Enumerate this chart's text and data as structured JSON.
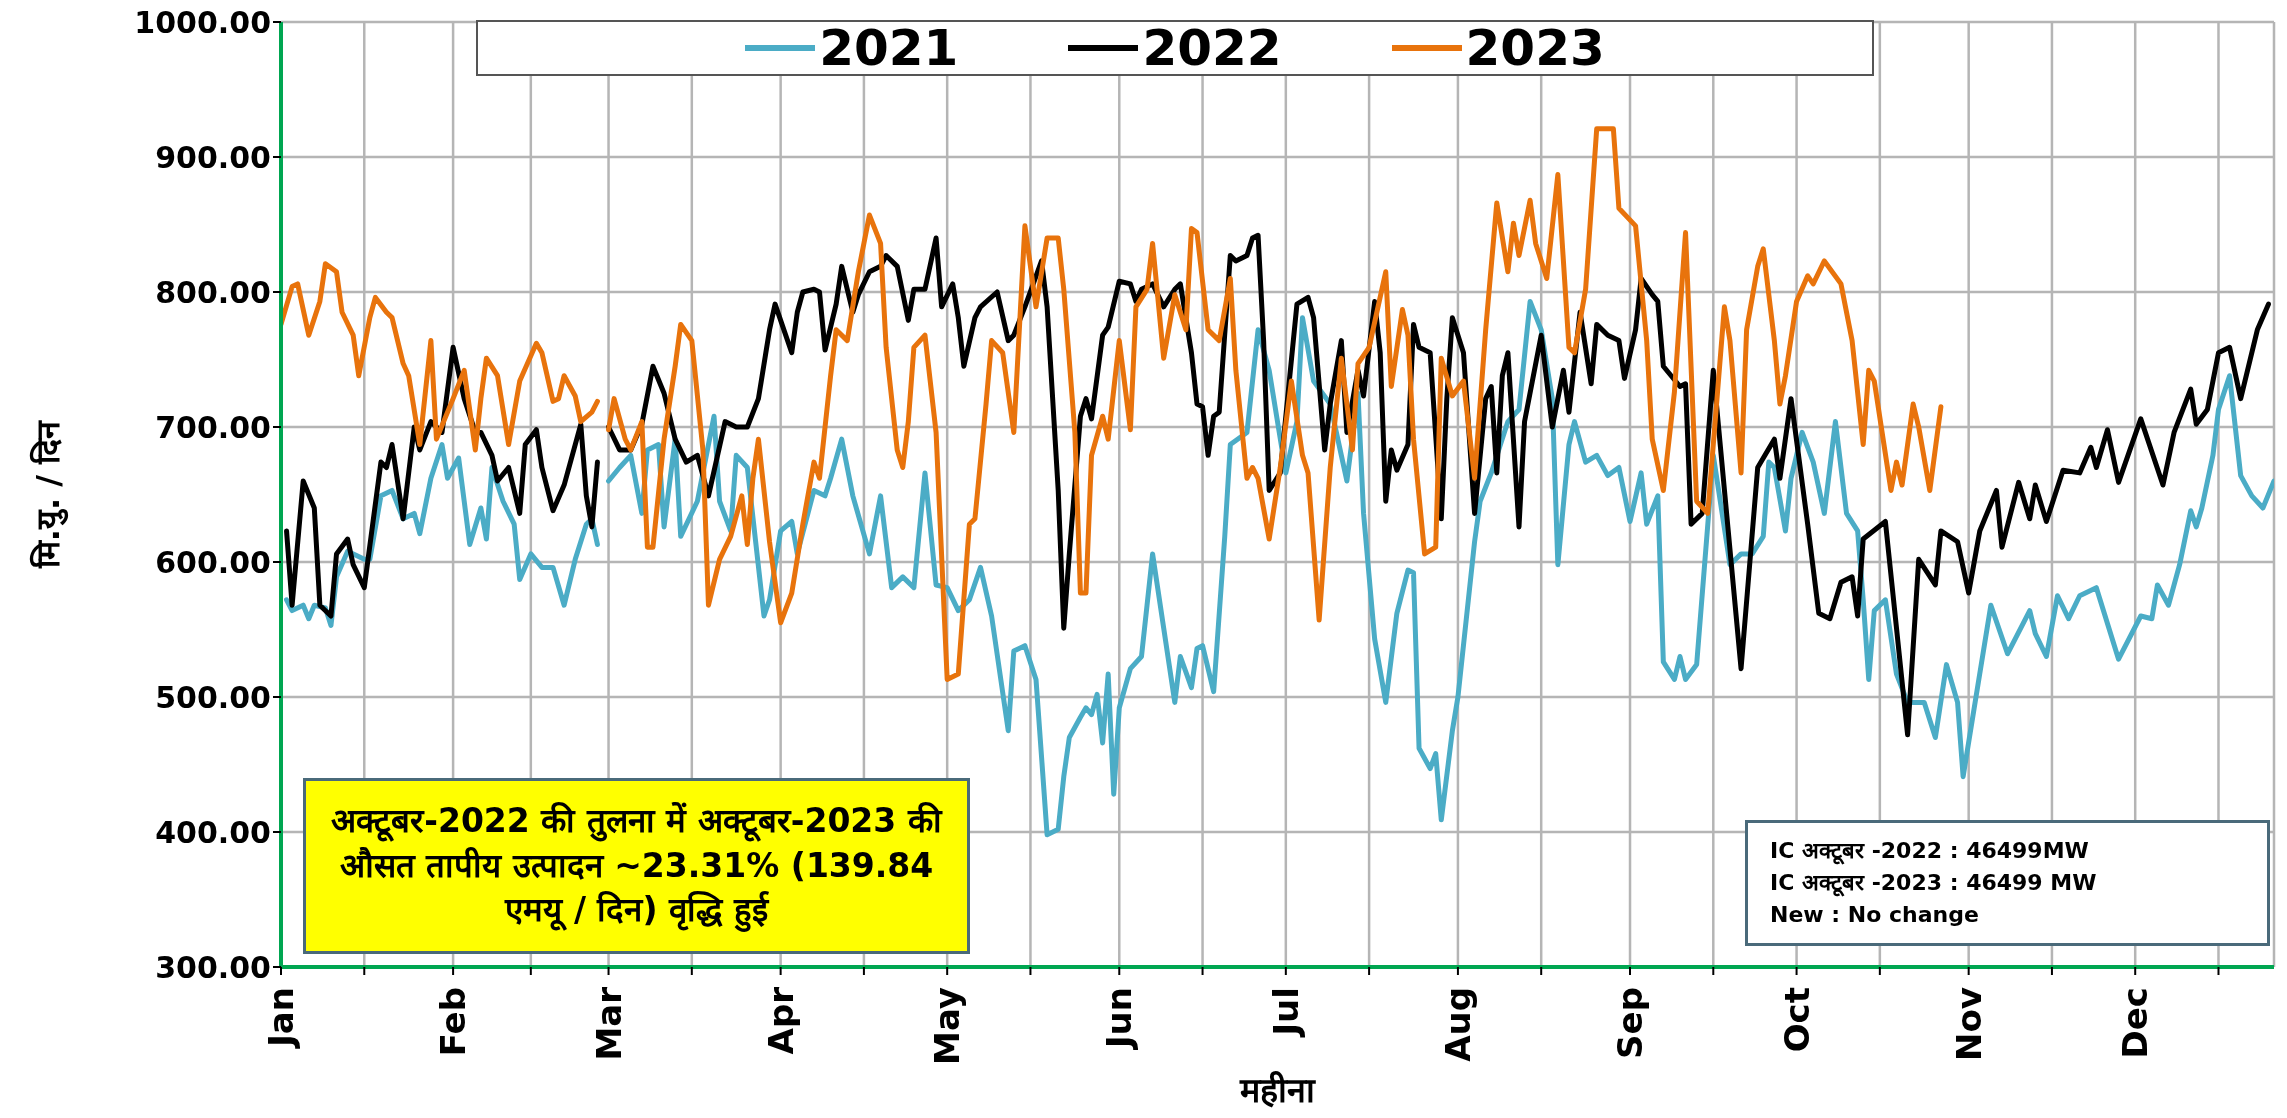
{
  "chart_data": {
    "type": "line",
    "xlabel": "महीना",
    "ylabel": "मि.यु. / दिन",
    "xlim": [
      "--01-01",
      "--12-26"
    ],
    "xticks": [
      {
        "value": "--01-01",
        "label": "Jan"
      },
      {
        "value": "--01-16",
        "label": null
      },
      {
        "value": "--02-01",
        "label": "Feb"
      },
      {
        "value": "--02-15",
        "label": null
      },
      {
        "value": "--03-01",
        "label": "Mar"
      },
      {
        "value": "--03-16",
        "label": null
      },
      {
        "value": "--04-01",
        "label": "Apr"
      },
      {
        "value": "--04-16",
        "label": null
      },
      {
        "value": "--05-01",
        "label": "May"
      },
      {
        "value": "--05-16",
        "label": null
      },
      {
        "value": "--06-01",
        "label": "Jun"
      },
      {
        "value": "--06-16",
        "label": null
      },
      {
        "value": "--07-01",
        "label": "Jul"
      },
      {
        "value": "--07-16",
        "label": null
      },
      {
        "value": "--08-01",
        "label": "Aug"
      },
      {
        "value": "--08-16",
        "label": null
      },
      {
        "value": "--09-01",
        "label": "Sep"
      },
      {
        "value": "--09-16",
        "label": null
      },
      {
        "value": "--10-01",
        "label": "Oct"
      },
      {
        "value": "--10-16",
        "label": null
      },
      {
        "value": "--11-01",
        "label": "Nov"
      },
      {
        "value": "--11-16",
        "label": null
      },
      {
        "value": "--12-01",
        "label": "Dec"
      },
      {
        "value": "--12-16",
        "label": null
      }
    ],
    "ylim": [
      300,
      1000
    ],
    "yticks": [
      {
        "value": 300,
        "label": "300.00"
      },
      {
        "value": 400,
        "label": "400.00"
      },
      {
        "value": 500,
        "label": "500.00"
      },
      {
        "value": 600,
        "label": "600.00"
      },
      {
        "value": 700,
        "label": "700.00"
      },
      {
        "value": 800,
        "label": "800.00"
      },
      {
        "value": 900,
        "label": "900.00"
      },
      {
        "value": 1000,
        "label": "1000.00"
      }
    ],
    "grid": true,
    "legend": "top",
    "marker": "none",
    "line_style": "solid",
    "annotations": [
      "अक्टूबर-2022 की तुलना में अक्टूबर-2023 की औसत तापीय उत्पादन ~23.31% (139.84 एमयू / दिन) वृद्धि हुई",
      "IC अक्टूबर -2022 : 46499MW\nIC अक्टूबर  -2023 : 46499 MW\nNew : No change"
    ],
    "series": [
      {
        "name": "2021",
        "color": "#4bacc6",
        "x": [
          "--01-02",
          "--01-03",
          "--01-05",
          "--01-06",
          "--01-07",
          "--01-09",
          "--01-10",
          "--01-11",
          "--01-13",
          "--01-16",
          "--01-17",
          "--01-19",
          "--01-21",
          "--01-23",
          "--01-25",
          "--01-26",
          "--01-28",
          "--01-30",
          "--01-31",
          "--02-02",
          "--02-03",
          "--02-04",
          "--02-06",
          "--02-07",
          "--02-08",
          "--02-10",
          "--02-12",
          "--02-13",
          "--02-15",
          "--02-17",
          "--02-19",
          "--02-21",
          "--02-23",
          "--02-25",
          "--02-26",
          "--02-27",
          "--02-28",
          "--03-01",
          "--03-03",
          "--03-05",
          "--03-07",
          "--03-08",
          "--03-10",
          "--03-11",
          "--03-13",
          "--03-14",
          "--03-17",
          "--03-20",
          "--03-21",
          "--03-23",
          "--03-24",
          "--03-26",
          "--03-29",
          "--03-30",
          "--04-01",
          "--04-03",
          "--04-04",
          "--04-07",
          "--04-09",
          "--04-10",
          "--04-12",
          "--04-14",
          "--04-17",
          "--04-19",
          "--04-21",
          "--04-23",
          "--04-25",
          "--04-27",
          "--04-29",
          "--05-01",
          "--05-03",
          "--05-05",
          "--05-07",
          "--05-09",
          "--05-12",
          "--05-13",
          "--05-15",
          "--05-17",
          "--05-19",
          "--05-21",
          "--05-22",
          "--05-23",
          "--05-25",
          "--05-26",
          "--05-27",
          "--05-28",
          "--05-29",
          "--05-30",
          "--05-31",
          "--06-01",
          "--06-03",
          "--06-05",
          "--06-06",
          "--06-07",
          "--06-09",
          "--06-11",
          "--06-12",
          "--06-14",
          "--06-15",
          "--06-16",
          "--06-18",
          "--06-20",
          "--06-21",
          "--06-24",
          "--06-26",
          "--06-28",
          "--07-01",
          "--07-03",
          "--07-04",
          "--07-06",
          "--07-09",
          "--07-11",
          "--07-12",
          "--07-14",
          "--07-15",
          "--07-17",
          "--07-19",
          "--07-21",
          "--07-23",
          "--07-24",
          "--07-25",
          "--07-27",
          "--07-28",
          "--07-29",
          "--07-31",
          "--08-01",
          "--08-04",
          "--08-05",
          "--08-07",
          "--08-10",
          "--08-12",
          "--08-14",
          "--08-16",
          "--08-18",
          "--08-19",
          "--08-21",
          "--08-22",
          "--08-24",
          "--08-26",
          "--08-28",
          "--08-30",
          "--09-01",
          "--09-03",
          "--09-04",
          "--09-06",
          "--09-07",
          "--09-09",
          "--09-10",
          "--09-11",
          "--09-13",
          "--09-16",
          "--09-19",
          "--09-21",
          "--09-23",
          "--09-25",
          "--09-26",
          "--09-27",
          "--09-29",
          "--09-30",
          "--10-02",
          "--10-04",
          "--10-06",
          "--10-08",
          "--10-10",
          "--10-12",
          "--10-13",
          "--10-14",
          "--10-15",
          "--10-17",
          "--10-19",
          "--10-21",
          "--10-24",
          "--10-26",
          "--10-28",
          "--10-30",
          "--10-31",
          "--11-02",
          "--11-05",
          "--11-08",
          "--11-12",
          "--11-13",
          "--11-15",
          "--11-17",
          "--11-19",
          "--11-21",
          "--11-24",
          "--11-28",
          "--12-02",
          "--12-04",
          "--12-05",
          "--12-07",
          "--12-09",
          "--12-11",
          "--12-12",
          "--12-13",
          "--12-15",
          "--12-16",
          "--12-18",
          "--12-20",
          "--12-22",
          "--12-24",
          "--12-26"
        ],
        "values": [
          572,
          564,
          568,
          558,
          568,
          566,
          553,
          589,
          608,
          602,
          602,
          649,
          653,
          632,
          636,
          621,
          662,
          687,
          662,
          677,
          645,
          613,
          640,
          617,
          670,
          645,
          628,
          587,
          606,
          596,
          596,
          568,
          602,
          628,
          632,
          613,
          null,
          660,
          670,
          679,
          636,
          683,
          687,
          626,
          691,
          619,
          645,
          708,
          645,
          623,
          679,
          670,
          560,
          572,
          623,
          630,
          606,
          653,
          649,
          662,
          691,
          649,
          606,
          649,
          581,
          589,
          581,
          666,
          583,
          581,
          564,
          572,
          596,
          560,
          475,
          534,
          538,
          513,
          398,
          402,
          441,
          470,
          485,
          492,
          487,
          502,
          466,
          517,
          428,
          492,
          521,
          530,
          568,
          606,
          551,
          496,
          530,
          507,
          536,
          538,
          504,
          619,
          687,
          696,
          772,
          742,
          666,
          704,
          781,
          734,
          717,
          679,
          660,
          725,
          636,
          543,
          496,
          562,
          594,
          592,
          462,
          447,
          458,
          409,
          475,
          500,
          615,
          645,
          666,
          704,
          713,
          793,
          772,
          721,
          598,
          687,
          704,
          674,
          679,
          664,
          670,
          630,
          666,
          628,
          649,
          526,
          513,
          530,
          513,
          524,
          679,
          598,
          606,
          606,
          619,
          674,
          670,
          623,
          662,
          696,
          674,
          636,
          704,
          636,
          623,
          572,
          513,
          564,
          572,
          517,
          496,
          496,
          470,
          524,
          496,
          441,
          492,
          568,
          532,
          564,
          547,
          530,
          575,
          558,
          575,
          581,
          528,
          560,
          558,
          583,
          568,
          598,
          638,
          626,
          640,
          679,
          713,
          738,
          664,
          649,
          640,
          660
        ]
      },
      {
        "name": "2022",
        "color": "#000000",
        "x": [
          "--01-02",
          "--01-03",
          "--01-05",
          "--01-07",
          "--01-08",
          "--01-10",
          "--01-11",
          "--01-13",
          "--01-14",
          "--01-16",
          "--01-19",
          "--01-20",
          "--01-21",
          "--01-23",
          "--01-25",
          "--01-26",
          "--01-28",
          "--01-30",
          "--02-01",
          "--02-03",
          "--02-05",
          "--02-06",
          "--02-08",
          "--02-09",
          "--02-11",
          "--02-13",
          "--02-14",
          "--02-16",
          "--02-17",
          "--02-19",
          "--02-21",
          "--02-24",
          "--02-25",
          "--02-26",
          "--02-27",
          "--02-28",
          "--03-01",
          "--03-03",
          "--03-05",
          "--03-07",
          "--03-09",
          "--03-11",
          "--03-13",
          "--03-15",
          "--03-17",
          "--03-19",
          "--03-22",
          "--03-24",
          "--03-26",
          "--03-28",
          "--03-30",
          "--03-31",
          "--04-03",
          "--04-04",
          "--04-05",
          "--04-07",
          "--04-08",
          "--04-09",
          "--04-11",
          "--04-12",
          "--04-14",
          "--04-15",
          "--04-17",
          "--04-19",
          "--04-20",
          "--04-22",
          "--04-24",
          "--04-25",
          "--04-27",
          "--04-29",
          "--04-30",
          "--05-02",
          "--05-03",
          "--05-04",
          "--05-06",
          "--05-07",
          "--05-10",
          "--05-12",
          "--05-13",
          "--05-15",
          "--05-18",
          "--05-19",
          "--05-21",
          "--05-22",
          "--05-23",
          "--05-25",
          "--05-26",
          "--05-27",
          "--05-29",
          "--05-30",
          "--06-01",
          "--06-03",
          "--06-04",
          "--06-05",
          "--06-07",
          "--06-09",
          "--06-11",
          "--06-12",
          "--06-14",
          "--06-15",
          "--06-16",
          "--06-17",
          "--06-18",
          "--06-19",
          "--06-21",
          "--06-22",
          "--06-24",
          "--06-25",
          "--06-26",
          "--06-27",
          "--06-28",
          "--06-30",
          "--07-01",
          "--07-03",
          "--07-05",
          "--07-06",
          "--07-08",
          "--07-09",
          "--07-11",
          "--07-12",
          "--07-14",
          "--07-15",
          "--07-17",
          "--07-18",
          "--07-19",
          "--07-20",
          "--07-21",
          "--07-23",
          "--07-24",
          "--07-25",
          "--07-27",
          "--07-29",
          "--07-30",
          "--07-31",
          "--08-02",
          "--08-04",
          "--08-06",
          "--08-07",
          "--08-08",
          "--08-09",
          "--08-10",
          "--08-12",
          "--08-13",
          "--08-16",
          "--08-18",
          "--08-20",
          "--08-21",
          "--08-23",
          "--08-25",
          "--08-26",
          "--08-28",
          "--08-30",
          "--08-31",
          "--09-02",
          "--09-03",
          "--09-05",
          "--09-06",
          "--09-07",
          "--09-10",
          "--09-11",
          "--09-12",
          "--09-14",
          "--09-16",
          "--09-21",
          "--09-24",
          "--09-27",
          "--09-28",
          "--09-30",
          "--10-03",
          "--10-05",
          "--10-07",
          "--10-09",
          "--10-11",
          "--10-12",
          "--10-13",
          "--10-17",
          "--10-21",
          "--10-23",
          "--10-26",
          "--10-27",
          "--10-30",
          "--11-01",
          "--11-03",
          "--11-06",
          "--11-07",
          "--11-10",
          "--11-12",
          "--11-13",
          "--11-15",
          "--11-18",
          "--11-21",
          "--11-23",
          "--11-24",
          "--11-26",
          "--11-28",
          "--12-02",
          "--12-06",
          "--12-08",
          "--12-11",
          "--12-12",
          "--12-14",
          "--12-16",
          "--12-18",
          "--12-20",
          "--12-23",
          "--12-25"
        ],
        "values": [
          623,
          568,
          660,
          640,
          568,
          560,
          606,
          617,
          598,
          581,
          674,
          670,
          687,
          632,
          700,
          683,
          704,
          696,
          759,
          721,
          696,
          696,
          679,
          660,
          670,
          636,
          687,
          698,
          670,
          638,
          657,
          702,
          649,
          626,
          674,
          null,
          700,
          683,
          683,
          702,
          745,
          725,
          691,
          674,
          679,
          649,
          704,
          700,
          700,
          721,
          772,
          791,
          755,
          785,
          800,
          802,
          800,
          757,
          791,
          819,
          785,
          798,
          815,
          819,
          827,
          819,
          779,
          802,
          802,
          840,
          789,
          806,
          781,
          745,
          781,
          789,
          800,
          764,
          768,
          789,
          823,
          789,
          653,
          551,
          606,
          708,
          721,
          706,
          768,
          774,
          808,
          806,
          793,
          802,
          806,
          789,
          802,
          806,
          755,
          717,
          715,
          679,
          708,
          711,
          827,
          823,
          827,
          840,
          842,
          764,
          653,
          666,
          708,
          791,
          796,
          781,
          683,
          717,
          764,
          696,
          742,
          723,
          793,
          755,
          645,
          683,
          668,
          687,
          776,
          759,
          755,
          632,
          721,
          781,
          755,
          636,
          721,
          730,
          666,
          738,
          755,
          626,
          704,
          768,
          700,
          742,
          711,
          785,
          732,
          776,
          768,
          764,
          736,
          772,
          810,
          798,
          793,
          745,
          730,
          732,
          628,
          636,
          742,
          521,
          670,
          691,
          662,
          721,
          628,
          562,
          558,
          585,
          589,
          560,
          617,
          630,
          472,
          602,
          583,
          623,
          615,
          577,
          623,
          653,
          611,
          659,
          632,
          657,
          630,
          668,
          666,
          685,
          670,
          698,
          659,
          706,
          657,
          696,
          728,
          702,
          713,
          755,
          759,
          721,
          772,
          791
        ]
      },
      {
        "name": "2023",
        "color": "#e8730c",
        "x": [
          "--01-01",
          "--01-03",
          "--01-04",
          "--01-06",
          "--01-08",
          "--01-09",
          "--01-11",
          "--01-12",
          "--01-14",
          "--01-15",
          "--01-17",
          "--01-18",
          "--01-20",
          "--01-21",
          "--01-23",
          "--01-24",
          "--01-26",
          "--01-28",
          "--01-29",
          "--02-01",
          "--02-03",
          "--02-05",
          "--02-06",
          "--02-07",
          "--02-09",
          "--02-11",
          "--02-13",
          "--02-16",
          "--02-17",
          "--02-19",
          "--02-20",
          "--02-21",
          "--02-23",
          "--02-24",
          "--02-26",
          "--02-27",
          "--02-28",
          "--03-01",
          "--03-02",
          "--03-04",
          "--03-05",
          "--03-07",
          "--03-08",
          "--03-09",
          "--03-11",
          "--03-13",
          "--03-14",
          "--03-16",
          "--03-18",
          "--03-19",
          "--03-21",
          "--03-23",
          "--03-25",
          "--03-26",
          "--03-27",
          "--03-28",
          "--03-30",
          "--04-01",
          "--04-03",
          "--04-05",
          "--04-07",
          "--04-08",
          "--04-10",
          "--04-11",
          "--04-13",
          "--04-15",
          "--04-17",
          "--04-19",
          "--04-20",
          "--04-22",
          "--04-23",
          "--04-24",
          "--04-25",
          "--04-27",
          "--04-29",
          "--05-01",
          "--05-03",
          "--05-05",
          "--05-06",
          "--05-08",
          "--05-09",
          "--05-11",
          "--05-13",
          "--05-15",
          "--05-17",
          "--05-19",
          "--05-21",
          "--05-22",
          "--05-24",
          "--05-25",
          "--05-26",
          "--05-27",
          "--05-29",
          "--05-30",
          "--06-01",
          "--06-03",
          "--06-04",
          "--06-06",
          "--06-07",
          "--06-09",
          "--06-11",
          "--06-13",
          "--06-14",
          "--06-15",
          "--06-17",
          "--06-19",
          "--06-21",
          "--06-22",
          "--06-24",
          "--06-25",
          "--06-26",
          "--06-28",
          "--06-30",
          "--07-02",
          "--07-04",
          "--07-05",
          "--07-07",
          "--07-09",
          "--07-11",
          "--07-13",
          "--07-14",
          "--07-16",
          "--07-19",
          "--07-20",
          "--07-22",
          "--07-23",
          "--07-24",
          "--07-26",
          "--07-28",
          "--07-29",
          "--07-31",
          "--08-02",
          "--08-04",
          "--08-06",
          "--08-08",
          "--08-10",
          "--08-11",
          "--08-12",
          "--08-14",
          "--08-15",
          "--08-17",
          "--08-19",
          "--08-21",
          "--08-22",
          "--08-24",
          "--08-26",
          "--08-29",
          "--08-30",
          "--09-02",
          "--09-04",
          "--09-05",
          "--09-07",
          "--09-09",
          "--09-11",
          "--09-13",
          "--09-15",
          "--09-18",
          "--09-19",
          "--09-21",
          "--09-22",
          "--09-24",
          "--09-25",
          "--09-27",
          "--09-28",
          "--09-29",
          "--10-01",
          "--10-03",
          "--10-04",
          "--10-06",
          "--10-09",
          "--10-11",
          "--10-13",
          "--10-14",
          "--10-15",
          "--10-18",
          "--10-19",
          "--10-20",
          "--10-22",
          "--10-23",
          "--10-25",
          "--10-27"
        ],
        "values": [
          776,
          804,
          806,
          768,
          793,
          821,
          815,
          785,
          768,
          738,
          781,
          796,
          785,
          781,
          747,
          738,
          687,
          764,
          691,
          721,
          742,
          683,
          721,
          751,
          738,
          687,
          734,
          762,
          755,
          719,
          721,
          738,
          723,
          704,
          711,
          719,
          null,
          698,
          721,
          691,
          683,
          704,
          611,
          611,
          691,
          745,
          776,
          764,
          683,
          568,
          602,
          619,
          649,
          613,
          662,
          691,
          615,
          555,
          577,
          628,
          674,
          662,
          738,
          772,
          764,
          815,
          857,
          836,
          759,
          683,
          670,
          704,
          759,
          768,
          696,
          513,
          517,
          628,
          632,
          717,
          764,
          755,
          696,
          849,
          789,
          840,
          840,
          802,
          696,
          577,
          577,
          679,
          708,
          691,
          764,
          698,
          789,
          802,
          836,
          751,
          798,
          772,
          847,
          844,
          772,
          764,
          810,
          742,
          662,
          670,
          662,
          617,
          670,
          734,
          679,
          666,
          557,
          670,
          751,
          683,
          747,
          759,
          815,
          730,
          787,
          768,
          691,
          606,
          611,
          751,
          723,
          734,
          662,
          772,
          866,
          815,
          851,
          827,
          868,
          836,
          810,
          887,
          759,
          755,
          802,
          921,
          921,
          862,
          849,
          764,
          691,
          653,
          726,
          844,
          645,
          636,
          789,
          764,
          666,
          772,
          819,
          832,
          764,
          717,
          738,
          793,
          812,
          806,
          823,
          806,
          764,
          687,
          742,
          734,
          653,
          674,
          657,
          717,
          700,
          653,
          715
        ]
      }
    ]
  }
}
